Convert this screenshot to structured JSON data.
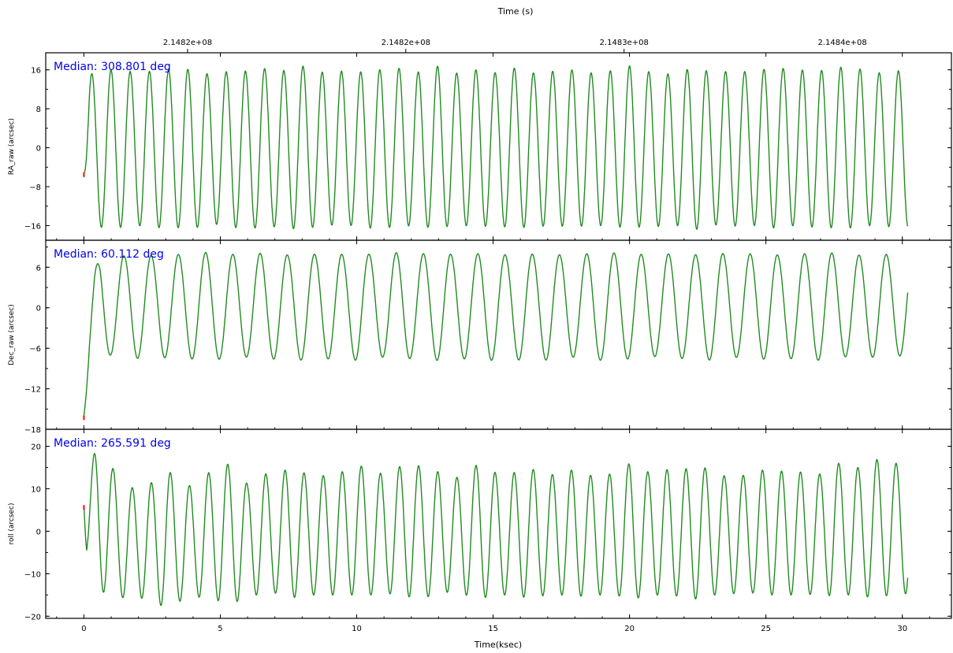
{
  "chart_data": {
    "type": "line",
    "top_axis": {
      "title": "Time (s)",
      "ticks": [
        {
          "at_ksec": 3.8,
          "label": "2.1482e+08"
        },
        {
          "at_ksec": 11.8,
          "label": "2.1482e+08"
        },
        {
          "at_ksec": 19.8,
          "label": "2.1483e+08"
        },
        {
          "at_ksec": 27.8,
          "label": "2.1484e+08"
        }
      ]
    },
    "bottom_axis": {
      "title": "Time(ksec)",
      "xlim": [
        -1.4,
        31.8
      ],
      "ticks": [
        0,
        5,
        10,
        15,
        20,
        25,
        30
      ]
    },
    "series_color": "#228b22",
    "start_marker_color": "#ff0000",
    "panels": [
      {
        "ylabel": "RA_raw (arcsec)",
        "median": "Median: 308.801 deg",
        "ylim": [
          -19,
          19.5
        ],
        "yticks": [
          -16,
          -8,
          0,
          8,
          16
        ],
        "ytick_labels": [
          "−16",
          "−8",
          "0",
          "8",
          "16"
        ],
        "period_ksec": 0.704,
        "phase": 0.84,
        "x": [
          0.0,
          0.2,
          0.5,
          1.0,
          1.5,
          2.0,
          2.5,
          3.0,
          3.5,
          4.0,
          4.5,
          5.0,
          5.5,
          6.0,
          6.5,
          7.0,
          7.5,
          8.0,
          8.5,
          9.0,
          9.5,
          10.0,
          10.5,
          11.0,
          11.5,
          12.0,
          12.5,
          13.0,
          13.5,
          14.0,
          14.5,
          15.0,
          15.5,
          16.0,
          16.5,
          17.0,
          17.5,
          18.0,
          18.5,
          19.0,
          19.5,
          20.0,
          20.5,
          21.0,
          21.5,
          22.0,
          22.5,
          23.0,
          23.5,
          24.0,
          24.5,
          25.0,
          25.5,
          26.0,
          26.5,
          27.0,
          27.5,
          28.0,
          28.5,
          29.0,
          29.5,
          30.0,
          30.2
        ],
        "amplitude": [
          6.0,
          15.0,
          16.0,
          16.2,
          16.0,
          15.8,
          16.0,
          16.3,
          16.0,
          16.5,
          15.5,
          15.5,
          16.2,
          16.0,
          16.5,
          16.0,
          16.2,
          16.8,
          16.0,
          15.5,
          16.0,
          15.5,
          16.5,
          16.0,
          16.5,
          15.6,
          16.0,
          16.8,
          15.5,
          15.8,
          16.2,
          15.6,
          16.2,
          16.5,
          15.6,
          16.0,
          15.8,
          16.2,
          15.6,
          15.8,
          16.0,
          16.8,
          15.8,
          16.0,
          15.4,
          16.0,
          16.8,
          15.5,
          15.8,
          16.0,
          15.6,
          16.3,
          16.5,
          15.8,
          16.2,
          16.0,
          16.5,
          16.5,
          16.2,
          15.5,
          16.0,
          16.0,
          16.0
        ],
        "offset": [
          0,
          0,
          -0.3,
          -0.2,
          -0.3,
          -0.2,
          -0.3,
          -0.2,
          -0.4,
          -0.1,
          -0.3,
          -0.2,
          -0.2,
          -0.3,
          -0.1,
          -0.2,
          -0.3,
          0.0,
          -0.2,
          -0.3,
          -0.2,
          -0.3,
          0.0,
          -0.2,
          -0.1,
          -0.3,
          -0.2,
          0.0,
          -0.3,
          -0.2,
          -0.1,
          -0.3,
          -0.1,
          0.0,
          -0.3,
          -0.2,
          -0.3,
          -0.1,
          -0.3,
          -0.2,
          -0.1,
          0.0,
          -0.3,
          -0.2,
          -0.4,
          -0.2,
          0.0,
          -0.3,
          -0.2,
          -0.1,
          -0.3,
          -0.1,
          0.0,
          -0.2,
          -0.1,
          -0.2,
          0.0,
          0.0,
          -0.1,
          -0.3,
          -0.2,
          -0.2,
          -0.2
        ]
      },
      {
        "ylabel": "Dec_raw (arcsec)",
        "median": "Median: 60.112 deg",
        "ylim": [
          -18,
          10
        ],
        "yticks": [
          -18,
          -12,
          -6,
          0,
          6
        ],
        "ytick_labels": [
          "−18",
          "−12",
          "−6",
          "0",
          "6"
        ],
        "period_ksec": 0.998,
        "phase": 0.78,
        "x": [
          0.0,
          0.2,
          0.4,
          0.6,
          1.0,
          1.5,
          2.0,
          2.5,
          3.0,
          3.5,
          4.0,
          4.5,
          5.0,
          5.5,
          6.0,
          6.5,
          7.0,
          7.5,
          8.0,
          8.5,
          9.0,
          9.5,
          10.0,
          10.5,
          11.0,
          11.5,
          12.0,
          12.5,
          13.0,
          13.5,
          14.0,
          14.5,
          15.0,
          15.5,
          16.0,
          16.5,
          17.0,
          17.5,
          18.0,
          18.5,
          19.0,
          19.5,
          20.0,
          20.5,
          21.0,
          21.5,
          22.0,
          22.5,
          23.0,
          23.5,
          24.0,
          24.5,
          25.0,
          25.5,
          26.0,
          26.5,
          27.0,
          27.5,
          28.0,
          28.5,
          29.0,
          29.5,
          30.0,
          30.2
        ],
        "amplitude": [
          4.0,
          6.0,
          7.0,
          7.5,
          7.3,
          7.5,
          7.8,
          7.5,
          7.6,
          7.6,
          7.8,
          8.0,
          7.8,
          7.6,
          7.5,
          7.8,
          7.8,
          7.5,
          8.0,
          7.6,
          7.8,
          7.6,
          8.0,
          7.6,
          7.5,
          8.0,
          7.8,
          7.8,
          8.0,
          7.6,
          7.8,
          7.8,
          8.0,
          7.5,
          8.0,
          7.6,
          8.0,
          7.6,
          7.6,
          7.8,
          8.0,
          7.8,
          7.8,
          7.6,
          7.5,
          7.8,
          7.8,
          7.6,
          8.0,
          7.8,
          7.6,
          7.8,
          7.8,
          7.5,
          7.8,
          7.8,
          8.0,
          7.8,
          7.5,
          7.6,
          7.6,
          7.6,
          7.5,
          7.3
        ],
        "offset": [
          -12.0,
          -5.0,
          -1.5,
          0.3,
          0.3,
          0.2,
          0.3,
          0.2,
          0.2,
          0.3,
          0.2,
          0.2,
          0.2,
          0.3,
          0.2,
          0.3,
          0.2,
          0.3,
          0.2,
          0.3,
          0.2,
          0.3,
          0.2,
          0.3,
          0.2,
          0.2,
          0.3,
          0.2,
          0.2,
          0.3,
          0.2,
          0.2,
          0.2,
          0.3,
          0.2,
          0.3,
          0.2,
          0.2,
          0.3,
          0.2,
          0.2,
          0.3,
          0.2,
          0.3,
          0.3,
          0.2,
          0.3,
          0.2,
          0.2,
          0.2,
          0.3,
          0.2,
          0.2,
          0.3,
          0.2,
          0.2,
          0.2,
          0.3,
          0.3,
          0.2,
          0.3,
          0.3,
          0.4,
          0.5
        ]
      },
      {
        "ylabel": "roll (arcsec)",
        "median": "Median: 265.591 deg",
        "ylim": [
          -20.5,
          24
        ],
        "yticks": [
          -20,
          -10,
          0,
          10,
          20
        ],
        "ytick_labels": [
          "−20",
          "−10",
          "0",
          "10",
          "20"
        ],
        "period_ksec": 0.7,
        "phase": 0.72,
        "x": [
          0.0,
          0.1,
          0.3,
          0.5,
          1.0,
          1.5,
          2.0,
          2.5,
          3.0,
          3.5,
          4.0,
          4.5,
          5.0,
          5.5,
          6.0,
          6.5,
          7.0,
          7.5,
          8.0,
          8.5,
          9.0,
          9.5,
          10.0,
          10.5,
          11.0,
          11.5,
          12.0,
          12.5,
          13.0,
          13.5,
          14.0,
          14.5,
          15.0,
          15.5,
          16.0,
          16.5,
          17.0,
          17.5,
          18.0,
          18.5,
          19.0,
          19.5,
          20.0,
          20.5,
          21.0,
          21.5,
          22.0,
          22.5,
          23.0,
          23.5,
          24.0,
          24.5,
          25.0,
          25.5,
          26.0,
          26.5,
          27.0,
          27.5,
          28.0,
          28.5,
          29.0,
          29.5,
          30.0,
          30.2
        ],
        "amplitude": [
          8.0,
          10.0,
          14.0,
          18.0,
          14.5,
          13.0,
          13.0,
          14.0,
          16.5,
          14.0,
          13.0,
          14.5,
          16.0,
          16.5,
          13.0,
          14.5,
          13.5,
          15.5,
          14.5,
          13.5,
          14.5,
          14.5,
          15.5,
          14.5,
          14.0,
          15.0,
          16.0,
          15.0,
          14.5,
          13.0,
          14.5,
          16.0,
          14.5,
          14.0,
          15.0,
          15.0,
          14.0,
          14.5,
          15.0,
          14.0,
          14.5,
          14.0,
          16.0,
          15.0,
          14.0,
          15.0,
          15.0,
          16.0,
          14.5,
          14.0,
          14.0,
          13.5,
          15.0,
          14.5,
          15.0,
          14.0,
          14.0,
          16.0,
          15.0,
          15.0,
          16.5,
          15.5,
          15.5,
          15.5
        ],
        "offset": [
          14.0,
          3.0,
          2.5,
          3.0,
          1.0,
          -3.0,
          -2.5,
          -2.5,
          -1.5,
          -2.5,
          -2.5,
          -1.0,
          -0.5,
          -0.5,
          -2.0,
          -0.5,
          -1.0,
          -0.5,
          -0.5,
          -1.5,
          -0.5,
          -0.5,
          0.5,
          -0.5,
          -0.5,
          0.0,
          0.5,
          -0.5,
          -0.5,
          -1.0,
          -0.5,
          0.0,
          -0.5,
          -1.0,
          -0.5,
          -0.5,
          -1.0,
          -0.5,
          -0.5,
          -1.0,
          -0.5,
          -1.0,
          0.0,
          -0.5,
          -1.0,
          0.0,
          -0.5,
          0.0,
          -0.5,
          -1.0,
          -0.5,
          -1.0,
          0.0,
          -0.5,
          0.0,
          -1.0,
          -0.5,
          0.5,
          0.0,
          0.0,
          0.5,
          0.5,
          0.5,
          1.0
        ]
      }
    ]
  }
}
